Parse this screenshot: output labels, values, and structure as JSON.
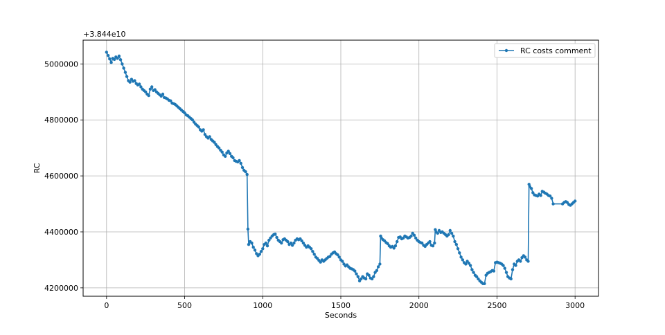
{
  "chart_data": {
    "type": "line",
    "title": "",
    "xlabel": "Seconds",
    "ylabel": "RC",
    "y_offset_label": "+3.844e10",
    "xlim": [
      -150,
      3150
    ],
    "ylim": [
      4170000,
      5085000
    ],
    "x_ticks": [
      0,
      500,
      1000,
      1500,
      2000,
      2500,
      3000
    ],
    "y_ticks": [
      4200000,
      4400000,
      4600000,
      4800000,
      5000000
    ],
    "x_tick_labels": [
      "0",
      "500",
      "1000",
      "1500",
      "2000",
      "2500",
      "3000"
    ],
    "y_tick_labels": [
      "4200000",
      "4400000",
      "4600000",
      "4800000",
      "5000000"
    ],
    "grid": true,
    "legend_position": "upper right",
    "color": "#1f77b4",
    "series": [
      {
        "name": "RC costs comment",
        "points": [
          [
            0,
            5042000
          ],
          [
            10,
            5030000
          ],
          [
            20,
            5018000
          ],
          [
            30,
            5005000
          ],
          [
            40,
            5020000
          ],
          [
            50,
            5016000
          ],
          [
            60,
            5025000
          ],
          [
            70,
            5020000
          ],
          [
            80,
            5028000
          ],
          [
            90,
            5015000
          ],
          [
            100,
            5000000
          ],
          [
            110,
            4985000
          ],
          [
            120,
            4970000
          ],
          [
            130,
            4955000
          ],
          [
            140,
            4940000
          ],
          [
            150,
            4935000
          ],
          [
            160,
            4945000
          ],
          [
            170,
            4938000
          ],
          [
            180,
            4940000
          ],
          [
            190,
            4930000
          ],
          [
            200,
            4925000
          ],
          [
            210,
            4928000
          ],
          [
            220,
            4918000
          ],
          [
            230,
            4910000
          ],
          [
            240,
            4905000
          ],
          [
            250,
            4900000
          ],
          [
            260,
            4892000
          ],
          [
            270,
            4887000
          ],
          [
            280,
            4910000
          ],
          [
            290,
            4918000
          ],
          [
            300,
            4905000
          ],
          [
            310,
            4908000
          ],
          [
            320,
            4900000
          ],
          [
            330,
            4895000
          ],
          [
            340,
            4890000
          ],
          [
            350,
            4885000
          ],
          [
            360,
            4892000
          ],
          [
            370,
            4880000
          ],
          [
            380,
            4878000
          ],
          [
            390,
            4875000
          ],
          [
            400,
            4870000
          ],
          [
            410,
            4868000
          ],
          [
            420,
            4860000
          ],
          [
            430,
            4858000
          ],
          [
            440,
            4855000
          ],
          [
            450,
            4850000
          ],
          [
            460,
            4845000
          ],
          [
            470,
            4840000
          ],
          [
            480,
            4835000
          ],
          [
            490,
            4830000
          ],
          [
            500,
            4825000
          ],
          [
            510,
            4818000
          ],
          [
            520,
            4815000
          ],
          [
            530,
            4810000
          ],
          [
            540,
            4805000
          ],
          [
            550,
            4800000
          ],
          [
            560,
            4792000
          ],
          [
            570,
            4785000
          ],
          [
            580,
            4780000
          ],
          [
            590,
            4775000
          ],
          [
            600,
            4765000
          ],
          [
            610,
            4760000
          ],
          [
            620,
            4765000
          ],
          [
            630,
            4748000
          ],
          [
            640,
            4740000
          ],
          [
            650,
            4735000
          ],
          [
            660,
            4740000
          ],
          [
            670,
            4730000
          ],
          [
            680,
            4725000
          ],
          [
            690,
            4720000
          ],
          [
            700,
            4712000
          ],
          [
            710,
            4705000
          ],
          [
            720,
            4700000
          ],
          [
            730,
            4692000
          ],
          [
            740,
            4685000
          ],
          [
            750,
            4675000
          ],
          [
            760,
            4670000
          ],
          [
            770,
            4682000
          ],
          [
            780,
            4688000
          ],
          [
            790,
            4680000
          ],
          [
            800,
            4670000
          ],
          [
            810,
            4665000
          ],
          [
            820,
            4655000
          ],
          [
            830,
            4652000
          ],
          [
            840,
            4650000
          ],
          [
            850,
            4655000
          ],
          [
            860,
            4645000
          ],
          [
            870,
            4630000
          ],
          [
            880,
            4620000
          ],
          [
            890,
            4615000
          ],
          [
            900,
            4605000
          ],
          [
            905,
            4410000
          ],
          [
            910,
            4355000
          ],
          [
            920,
            4365000
          ],
          [
            930,
            4360000
          ],
          [
            940,
            4345000
          ],
          [
            950,
            4335000
          ],
          [
            960,
            4322000
          ],
          [
            970,
            4315000
          ],
          [
            980,
            4320000
          ],
          [
            990,
            4330000
          ],
          [
            1000,
            4340000
          ],
          [
            1010,
            4355000
          ],
          [
            1020,
            4360000
          ],
          [
            1030,
            4350000
          ],
          [
            1040,
            4370000
          ],
          [
            1050,
            4378000
          ],
          [
            1060,
            4385000
          ],
          [
            1070,
            4390000
          ],
          [
            1080,
            4392000
          ],
          [
            1090,
            4380000
          ],
          [
            1100,
            4370000
          ],
          [
            1110,
            4365000
          ],
          [
            1120,
            4360000
          ],
          [
            1130,
            4372000
          ],
          [
            1140,
            4375000
          ],
          [
            1150,
            4370000
          ],
          [
            1160,
            4365000
          ],
          [
            1170,
            4355000
          ],
          [
            1180,
            4360000
          ],
          [
            1190,
            4352000
          ],
          [
            1200,
            4360000
          ],
          [
            1210,
            4370000
          ],
          [
            1220,
            4375000
          ],
          [
            1230,
            4372000
          ],
          [
            1240,
            4375000
          ],
          [
            1250,
            4368000
          ],
          [
            1260,
            4360000
          ],
          [
            1270,
            4352000
          ],
          [
            1280,
            4345000
          ],
          [
            1290,
            4350000
          ],
          [
            1300,
            4345000
          ],
          [
            1310,
            4340000
          ],
          [
            1320,
            4330000
          ],
          [
            1330,
            4320000
          ],
          [
            1340,
            4310000
          ],
          [
            1350,
            4305000
          ],
          [
            1360,
            4298000
          ],
          [
            1370,
            4292000
          ],
          [
            1380,
            4300000
          ],
          [
            1390,
            4295000
          ],
          [
            1400,
            4300000
          ],
          [
            1410,
            4305000
          ],
          [
            1420,
            4310000
          ],
          [
            1430,
            4312000
          ],
          [
            1440,
            4320000
          ],
          [
            1450,
            4325000
          ],
          [
            1460,
            4328000
          ],
          [
            1470,
            4322000
          ],
          [
            1480,
            4318000
          ],
          [
            1490,
            4310000
          ],
          [
            1500,
            4300000
          ],
          [
            1510,
            4295000
          ],
          [
            1520,
            4285000
          ],
          [
            1530,
            4278000
          ],
          [
            1540,
            4282000
          ],
          [
            1550,
            4275000
          ],
          [
            1560,
            4270000
          ],
          [
            1570,
            4268000
          ],
          [
            1580,
            4265000
          ],
          [
            1590,
            4260000
          ],
          [
            1600,
            4250000
          ],
          [
            1610,
            4240000
          ],
          [
            1620,
            4225000
          ],
          [
            1630,
            4232000
          ],
          [
            1640,
            4240000
          ],
          [
            1650,
            4235000
          ],
          [
            1660,
            4232000
          ],
          [
            1670,
            4250000
          ],
          [
            1680,
            4245000
          ],
          [
            1690,
            4235000
          ],
          [
            1700,
            4232000
          ],
          [
            1710,
            4240000
          ],
          [
            1720,
            4255000
          ],
          [
            1730,
            4262000
          ],
          [
            1740,
            4275000
          ],
          [
            1750,
            4285000
          ],
          [
            1755,
            4385000
          ],
          [
            1760,
            4378000
          ],
          [
            1770,
            4372000
          ],
          [
            1780,
            4368000
          ],
          [
            1790,
            4362000
          ],
          [
            1800,
            4358000
          ],
          [
            1810,
            4350000
          ],
          [
            1820,
            4345000
          ],
          [
            1830,
            4348000
          ],
          [
            1840,
            4342000
          ],
          [
            1850,
            4350000
          ],
          [
            1860,
            4365000
          ],
          [
            1870,
            4380000
          ],
          [
            1880,
            4382000
          ],
          [
            1890,
            4375000
          ],
          [
            1900,
            4378000
          ],
          [
            1910,
            4385000
          ],
          [
            1920,
            4382000
          ],
          [
            1930,
            4378000
          ],
          [
            1940,
            4380000
          ],
          [
            1950,
            4385000
          ],
          [
            1960,
            4395000
          ],
          [
            1970,
            4388000
          ],
          [
            1980,
            4378000
          ],
          [
            1990,
            4370000
          ],
          [
            2000,
            4365000
          ],
          [
            2010,
            4362000
          ],
          [
            2020,
            4360000
          ],
          [
            2030,
            4352000
          ],
          [
            2040,
            4348000
          ],
          [
            2050,
            4355000
          ],
          [
            2060,
            4360000
          ],
          [
            2070,
            4365000
          ],
          [
            2080,
            4352000
          ],
          [
            2090,
            4350000
          ],
          [
            2100,
            4360000
          ],
          [
            2105,
            4408000
          ],
          [
            2110,
            4400000
          ],
          [
            2120,
            4395000
          ],
          [
            2130,
            4405000
          ],
          [
            2140,
            4398000
          ],
          [
            2150,
            4400000
          ],
          [
            2160,
            4395000
          ],
          [
            2170,
            4390000
          ],
          [
            2180,
            4385000
          ],
          [
            2190,
            4390000
          ],
          [
            2200,
            4405000
          ],
          [
            2210,
            4395000
          ],
          [
            2220,
            4385000
          ],
          [
            2230,
            4365000
          ],
          [
            2240,
            4355000
          ],
          [
            2250,
            4340000
          ],
          [
            2260,
            4325000
          ],
          [
            2270,
            4310000
          ],
          [
            2280,
            4300000
          ],
          [
            2290,
            4290000
          ],
          [
            2300,
            4285000
          ],
          [
            2310,
            4295000
          ],
          [
            2320,
            4288000
          ],
          [
            2330,
            4280000
          ],
          [
            2340,
            4265000
          ],
          [
            2350,
            4255000
          ],
          [
            2360,
            4245000
          ],
          [
            2370,
            4240000
          ],
          [
            2380,
            4232000
          ],
          [
            2390,
            4225000
          ],
          [
            2400,
            4220000
          ],
          [
            2410,
            4215000
          ],
          [
            2420,
            4215000
          ],
          [
            2430,
            4245000
          ],
          [
            2440,
            4252000
          ],
          [
            2450,
            4255000
          ],
          [
            2460,
            4258000
          ],
          [
            2470,
            4262000
          ],
          [
            2480,
            4260000
          ],
          [
            2490,
            4290000
          ],
          [
            2500,
            4292000
          ],
          [
            2510,
            4290000
          ],
          [
            2520,
            4288000
          ],
          [
            2530,
            4285000
          ],
          [
            2540,
            4280000
          ],
          [
            2550,
            4270000
          ],
          [
            2560,
            4255000
          ],
          [
            2570,
            4240000
          ],
          [
            2580,
            4235000
          ],
          [
            2590,
            4232000
          ],
          [
            2600,
            4265000
          ],
          [
            2610,
            4285000
          ],
          [
            2620,
            4280000
          ],
          [
            2630,
            4295000
          ],
          [
            2640,
            4300000
          ],
          [
            2650,
            4295000
          ],
          [
            2660,
            4308000
          ],
          [
            2670,
            4315000
          ],
          [
            2680,
            4310000
          ],
          [
            2690,
            4300000
          ],
          [
            2700,
            4295000
          ],
          [
            2705,
            4570000
          ],
          [
            2710,
            4562000
          ],
          [
            2720,
            4555000
          ],
          [
            2730,
            4540000
          ],
          [
            2740,
            4532000
          ],
          [
            2750,
            4530000
          ],
          [
            2760,
            4528000
          ],
          [
            2770,
            4535000
          ],
          [
            2780,
            4530000
          ],
          [
            2790,
            4545000
          ],
          [
            2800,
            4542000
          ],
          [
            2810,
            4538000
          ],
          [
            2820,
            4535000
          ],
          [
            2830,
            4530000
          ],
          [
            2840,
            4528000
          ],
          [
            2850,
            4520000
          ],
          [
            2860,
            4500000
          ],
          [
            2920,
            4500000
          ],
          [
            2930,
            4505000
          ],
          [
            2940,
            4508000
          ],
          [
            2950,
            4505000
          ],
          [
            2960,
            4498000
          ],
          [
            2970,
            4495000
          ],
          [
            2980,
            4500000
          ],
          [
            2990,
            4505000
          ],
          [
            3000,
            4510000
          ]
        ]
      }
    ]
  }
}
